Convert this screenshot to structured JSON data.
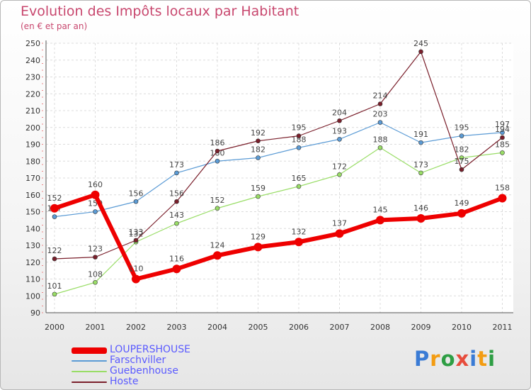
{
  "title": "Evolution des Impôts locaux par Habitant",
  "subtitle": "(en € et par an)",
  "logo": {
    "letters": [
      "P",
      "r",
      "o",
      "x",
      "i",
      "t",
      "i"
    ],
    "colors": [
      "#3a7bd5",
      "#f39c12",
      "#2e9e44",
      "#e74c3c",
      "#3a7bd5",
      "#f39c12",
      "#2e9e44"
    ]
  },
  "chart_data": {
    "type": "line",
    "x": [
      "2000",
      "2001",
      "2002",
      "2003",
      "2004",
      "2005",
      "2006",
      "2007",
      "2008",
      "2009",
      "2010",
      "2011"
    ],
    "ylim": [
      90,
      250
    ],
    "yticks": [
      90,
      100,
      110,
      120,
      130,
      140,
      150,
      160,
      170,
      180,
      190,
      200,
      210,
      220,
      230,
      240,
      250
    ],
    "grid": true,
    "legend_position": "bottom-left",
    "series": [
      {
        "name": "LOUPERSHOUSE",
        "color": "#ee0000",
        "width": 6,
        "marker": 6,
        "values": [
          152,
          160,
          110,
          116,
          124,
          129,
          132,
          137,
          145,
          146,
          149,
          158
        ]
      },
      {
        "name": "Farschviller",
        "color": "#5b9bd5",
        "width": 1.2,
        "marker": 3,
        "values": [
          147,
          150,
          156,
          173,
          180,
          182,
          188,
          193,
          203,
          191,
          195,
          197
        ]
      },
      {
        "name": "Guebenhouse",
        "color": "#99dd66",
        "width": 1.2,
        "marker": 3,
        "values": [
          101,
          108,
          132,
          143,
          152,
          159,
          165,
          172,
          188,
          173,
          182,
          185
        ]
      },
      {
        "name": "Hoste",
        "color": "#7a1f2b",
        "width": 1.2,
        "marker": 3,
        "values": [
          122,
          123,
          133,
          156,
          186,
          192,
          195,
          204,
          214,
          245,
          175,
          194
        ]
      }
    ]
  }
}
